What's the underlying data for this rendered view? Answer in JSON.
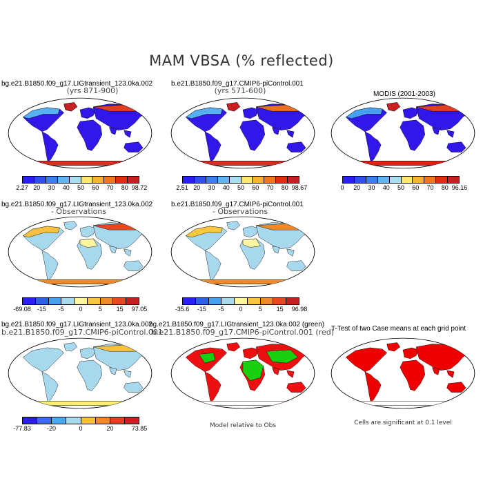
{
  "main_title": "MAM VBSA (% reflected)",
  "row1": {
    "p1": {
      "title": "bg.e21.B1850.f09_g17.LIGtransient_123.0ka.002",
      "subtitle": "(yrs 871-900)",
      "ticks": [
        "2.27",
        "20",
        "30",
        "40",
        "50",
        "60",
        "70",
        "80",
        "98.72"
      ]
    },
    "p2": {
      "title": "b.e21.B1850.f09_g17.CMIP6-piControl.001",
      "subtitle": "(yrs 571-600)",
      "ticks": [
        "2.51",
        "20",
        "30",
        "40",
        "50",
        "60",
        "70",
        "80",
        "98.67"
      ]
    },
    "p3": {
      "title": "MODIS (2001-2003)",
      "ticks": [
        "0",
        "20",
        "30",
        "40",
        "50",
        "60",
        "70",
        "80",
        "96.16"
      ]
    }
  },
  "row2": {
    "p1": {
      "title": "bg.e21.B1850.f09_g17.LIGtransient_123.0ka.002",
      "subtitle": "- Observations",
      "ticks": [
        "-69.08",
        "-15",
        "-5",
        "0",
        "5",
        "15",
        "97.05"
      ]
    },
    "p2": {
      "title": "b.e21.B1850.f09_g17.CMIP6-piControl.001",
      "subtitle": "- Observations",
      "ticks": [
        "-35.6",
        "-15",
        "-5",
        "0",
        "5",
        "15",
        "96.98"
      ]
    }
  },
  "row3": {
    "p1": {
      "title": "bg.e21.B1850.f09_g17.LIGtransient_123.0ka.002",
      "subtitle": "b.e21.B1850.f09_g17.CMIP6-piControl.001",
      "ticks": [
        "-77.83",
        "-20",
        "0",
        "20",
        "73.85"
      ]
    },
    "p2": {
      "title": "bg.e21.B1850.f09_g17.LIGtransient_123.0ka.002 (green)",
      "subtitle": "b.e21.B1850.f09_g17.CMIP6-piControl.001 (red)",
      "note": "Model relative to Obs"
    },
    "p3": {
      "title": "T-Test of two Case means at each grid point",
      "note": "Cells are significant at 0.1 level"
    }
  },
  "colors": {
    "abs_scale": [
      "#2a1ff0",
      "#2e4fe8",
      "#3d7ff0",
      "#5fb6f0",
      "#a8dff0",
      "#ffe770",
      "#f8b430",
      "#f07820",
      "#e03010",
      "#c82020"
    ],
    "diff_scale": [
      "#2a1ff0",
      "#3060e8",
      "#45a0f0",
      "#a8d8ee",
      "#fff4a0",
      "#f8c840",
      "#f08a28",
      "#e84820",
      "#c82020"
    ],
    "diff3_scale": [
      "#2a1ff0",
      "#3c6ae8",
      "#48a8f0",
      "#a8d8ee",
      "#f8c040",
      "#f08828",
      "#e04020",
      "#c82020"
    ],
    "green": "#18d010",
    "red": "#ee1010"
  }
}
